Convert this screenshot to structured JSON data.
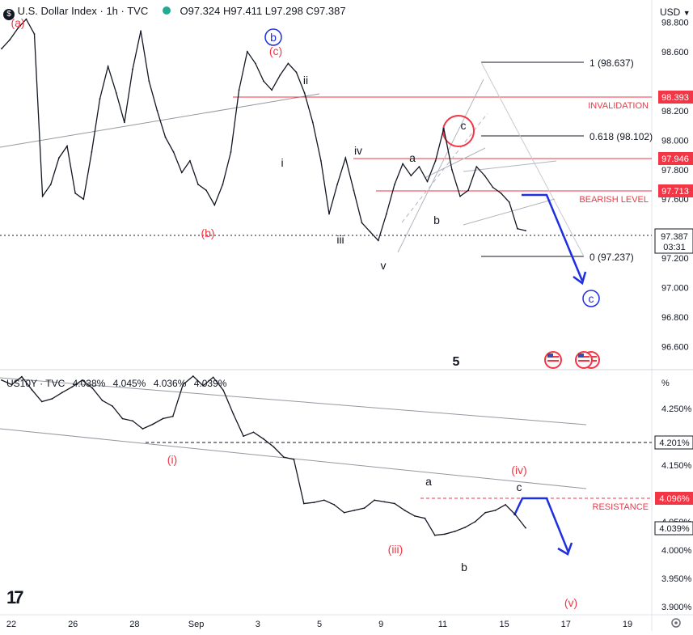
{
  "header": {
    "title": "U.S. Dollar Index · 1h · TVC",
    "ohlc": {
      "o_label": "O",
      "o": "97.324",
      "h_label": "H",
      "h": "97.411",
      "l_label": "L",
      "l": "97.298",
      "c_label": "C",
      "c": "97.387"
    },
    "currency": "USD"
  },
  "lower_header": {
    "title": "US10Y · TVC",
    "values": [
      "4.038%",
      "4.045%",
      "4.036%",
      "4.039%"
    ],
    "scale_symbol": "%"
  },
  "colors": {
    "red": "#f23645",
    "blue": "#1e2fe0",
    "grid": "#e0e3eb",
    "text": "#131722",
    "axis": "#6a6d78"
  },
  "chart_data": [
    {
      "type": "line",
      "title": "U.S. Dollar Index · 1h · TVC",
      "x_ticks": [
        "22",
        "26",
        "28",
        "Sep",
        "3",
        "5",
        "9",
        "11",
        "15",
        "17",
        "19"
      ],
      "y_ticks": [
        "98.800",
        "98.600",
        "98.200",
        "98.000",
        "97.800",
        "97.600",
        "97.200",
        "97.000",
        "96.800",
        "96.600"
      ],
      "ylim": [
        96.45,
        98.95
      ],
      "series": [
        {
          "values": [
            98.62,
            98.68,
            98.76,
            98.82,
            98.72,
            97.62,
            97.7,
            97.88,
            97.96,
            97.64,
            97.6,
            97.92,
            98.28,
            98.5,
            98.32,
            98.12,
            98.48,
            98.74,
            98.4,
            98.2,
            98.02,
            97.92,
            97.78,
            97.86,
            97.7,
            97.66,
            97.56,
            97.7,
            97.92,
            98.34,
            98.6,
            98.52,
            98.4,
            98.34,
            98.44,
            98.52,
            98.46,
            98.32,
            98.12,
            97.86,
            97.5,
            97.7,
            97.88,
            97.66,
            97.44,
            97.38,
            97.32,
            97.5,
            97.7,
            97.84,
            97.76,
            97.82,
            97.72,
            97.86,
            98.08,
            97.8,
            97.62,
            97.66,
            97.82,
            97.76,
            97.68,
            97.64,
            97.58,
            97.4,
            97.387
          ]
        }
      ],
      "price_levels": [
        {
          "label": "INVALIDATION",
          "value": "98.393"
        },
        {
          "label": "",
          "value": "97.946"
        },
        {
          "label": "BEARISH LEVEL",
          "value": "97.713"
        },
        {
          "label": "",
          "value": "97.387",
          "time": "03:31"
        }
      ],
      "fib_levels": [
        "1 (98.637)",
        "0.618 (98.102)",
        "0 (97.237)"
      ],
      "wave_labels": [
        "(a)",
        "(b)",
        "(c)",
        "i",
        "ii",
        "iii",
        "iv",
        "v",
        "a",
        "b",
        "c"
      ],
      "circle_labels": [
        "b",
        "c"
      ],
      "event_marker": "5"
    },
    {
      "type": "line",
      "title": "US10Y · TVC",
      "y_ticks": [
        "4.250%",
        "4.150%",
        "4.050%",
        "4.000%",
        "3.950%",
        "3.900%"
      ],
      "ylim": [
        3.887,
        4.317
      ],
      "series": [
        {
          "values": [
            4.3,
            4.292,
            4.306,
            4.283,
            4.262,
            4.267,
            4.278,
            4.288,
            4.3,
            4.286,
            4.264,
            4.254,
            4.232,
            4.228,
            4.214,
            4.222,
            4.232,
            4.236,
            4.292,
            4.307,
            4.29,
            4.305,
            4.282,
            4.24,
            4.201,
            4.208,
            4.196,
            4.182,
            4.164,
            4.16,
            4.082,
            4.084,
            4.088,
            4.08,
            4.066,
            4.07,
            4.074,
            4.088,
            4.085,
            4.082,
            4.07,
            4.06,
            4.056,
            4.026,
            4.028,
            4.033,
            4.04,
            4.05,
            4.066,
            4.07,
            4.08,
            4.062,
            4.039
          ]
        }
      ],
      "price_levels": [
        {
          "label": "",
          "value": "4.201%"
        },
        {
          "label": "RESISTANCE",
          "value": "4.096%"
        },
        {
          "label": "",
          "value": "4.039%"
        }
      ],
      "wave_labels": [
        "(i)",
        "(iii)",
        "(iv)",
        "(v)",
        "a",
        "b",
        "c"
      ]
    }
  ],
  "toolbar": {
    "logo": "17"
  }
}
